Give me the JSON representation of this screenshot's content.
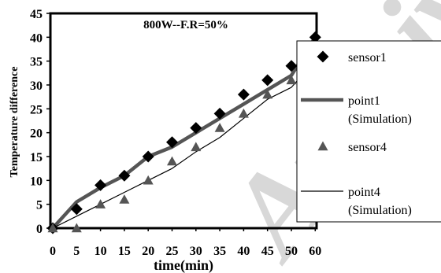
{
  "watermark": "Archiv",
  "chart_data": {
    "type": "line",
    "title": "800W--F.R=50%",
    "xlabel": "time(min)",
    "ylabel": "Temperature difference",
    "categories": [
      "0",
      "5",
      "10",
      "15",
      "20",
      "25",
      "30",
      "35",
      "40",
      "45",
      "50",
      "60"
    ],
    "ylim": [
      0,
      45
    ],
    "yticks": [
      0,
      5,
      10,
      15,
      20,
      25,
      30,
      35,
      40,
      45
    ],
    "grid": false,
    "legend_position": "right",
    "series": [
      {
        "name": "sensor1",
        "kind": "marker",
        "marker": "diamond",
        "color": "#000000",
        "values": [
          0,
          4,
          9,
          11,
          15,
          18,
          21,
          24,
          28,
          31,
          34,
          40
        ]
      },
      {
        "name": "point1 (Simulation)",
        "kind": "line",
        "style": "thick",
        "color": "#555555",
        "values": [
          0,
          5.5,
          8.5,
          11,
          15,
          17,
          20,
          23,
          26,
          29,
          32,
          40
        ]
      },
      {
        "name": "sensor4",
        "kind": "marker",
        "marker": "triangle",
        "color": "#555555",
        "values": [
          0,
          0,
          5,
          6,
          10,
          14,
          17,
          21,
          24,
          28,
          31,
          37
        ]
      },
      {
        "name": "point4 (Simulation)",
        "kind": "line",
        "style": "thin",
        "color": "#000000",
        "values": [
          0,
          2.5,
          5,
          7.5,
          10,
          12.5,
          16,
          19,
          23,
          27,
          29.5,
          35
        ]
      }
    ],
    "legend": [
      {
        "series": 0,
        "lines": [
          "sensor1"
        ]
      },
      {
        "series": 1,
        "lines": [
          "point1",
          "(Simulation)"
        ]
      },
      {
        "series": 2,
        "lines": [
          "sensor4"
        ]
      },
      {
        "series": 3,
        "lines": [
          "point4",
          "(Simulation)"
        ]
      }
    ]
  }
}
